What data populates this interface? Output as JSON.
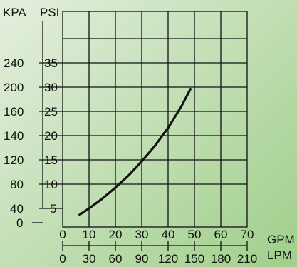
{
  "chart_data": {
    "type": "line",
    "grid": true,
    "kpa_title": "KPA",
    "psi_title": "PSI",
    "gpm_title": "GPM",
    "lpm_title": "LPM",
    "x_gpm_ticks": [
      "0",
      "10",
      "20",
      "30",
      "40",
      "50",
      "60",
      "70"
    ],
    "x_lpm_ticks": [
      "0",
      "30",
      "60",
      "90",
      "120",
      "150",
      "180",
      "210"
    ],
    "y_psi_ticks": [
      "5",
      "10",
      "15",
      "20",
      "25",
      "30",
      "35"
    ],
    "y_kpa_ticks": [
      "0",
      "40",
      "80",
      "120",
      "140",
      "160",
      "200",
      "240"
    ],
    "xlim": [
      0,
      70
    ],
    "ylim": [
      0,
      40
    ],
    "series": [
      {
        "x": [
          6.4,
          10,
          15,
          20,
          25,
          30,
          35,
          40,
          45,
          48.5
        ],
        "y": [
          3.7,
          5.0,
          7.0,
          9.3,
          11.8,
          14.7,
          17.9,
          21.6,
          26.0,
          29.6
        ]
      }
    ]
  }
}
